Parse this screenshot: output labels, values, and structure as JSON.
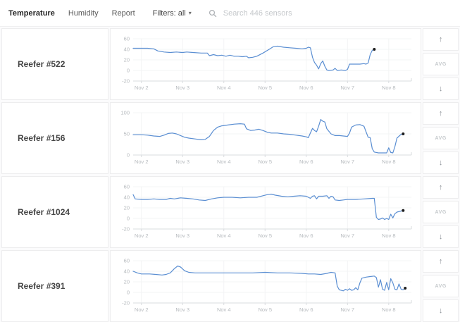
{
  "header": {
    "tabs": [
      {
        "label": "Temperature",
        "active": true
      },
      {
        "label": "Humidity",
        "active": false
      },
      {
        "label": "Report",
        "active": false
      }
    ],
    "filters_label": "Filters: all",
    "search_placeholder": "Search 446 sensors"
  },
  "icons": {
    "caret_down": "▾",
    "arrow_up": "↑",
    "arrow_down": "↓"
  },
  "controls": {
    "avg_label": "AVG"
  },
  "colors": {
    "line": "#5a8ed2",
    "dot": "#1d1d1d",
    "axis_text": "#b6babe",
    "grid": "#f3f4f5",
    "baseline": "#d9dcdf"
  },
  "chart_data": [
    {
      "type": "line",
      "title": "Reefer #522",
      "x_ticks": [
        "Nov 2",
        "Nov 3",
        "Nov 4",
        "Nov 5",
        "Nov 6",
        "Nov 7",
        "Nov 8"
      ],
      "x_min": -0.2,
      "x_max": 6.55,
      "ylim": [
        -20,
        60
      ],
      "yticks": [
        60,
        40,
        20,
        0,
        -20
      ],
      "end_dot": true,
      "series": [
        {
          "name": "temperature",
          "points": [
            [
              -0.2,
              42
            ],
            [
              0,
              42
            ],
            [
              0.15,
              42
            ],
            [
              0.3,
              41
            ],
            [
              0.4,
              37
            ],
            [
              0.55,
              35
            ],
            [
              0.7,
              34
            ],
            [
              0.85,
              35
            ],
            [
              1.0,
              34
            ],
            [
              1.1,
              35
            ],
            [
              1.25,
              34
            ],
            [
              1.45,
              33
            ],
            [
              1.6,
              33
            ],
            [
              1.65,
              28
            ],
            [
              1.75,
              30
            ],
            [
              1.85,
              28
            ],
            [
              1.95,
              29
            ],
            [
              2.05,
              27
            ],
            [
              2.15,
              29
            ],
            [
              2.25,
              27
            ],
            [
              2.35,
              27
            ],
            [
              2.45,
              26
            ],
            [
              2.55,
              27
            ],
            [
              2.6,
              24
            ],
            [
              2.7,
              25
            ],
            [
              2.8,
              27
            ],
            [
              2.95,
              33
            ],
            [
              3.1,
              40
            ],
            [
              3.2,
              45
            ],
            [
              3.3,
              46
            ],
            [
              3.45,
              44
            ],
            [
              3.6,
              43
            ],
            [
              3.75,
              42
            ],
            [
              3.9,
              41
            ],
            [
              4.0,
              42
            ],
            [
              4.05,
              44
            ],
            [
              4.1,
              43
            ],
            [
              4.15,
              25
            ],
            [
              4.2,
              15
            ],
            [
              4.25,
              10
            ],
            [
              4.3,
              3
            ],
            [
              4.35,
              13
            ],
            [
              4.4,
              18
            ],
            [
              4.45,
              8
            ],
            [
              4.5,
              1
            ],
            [
              4.55,
              0
            ],
            [
              4.65,
              1
            ],
            [
              4.7,
              4
            ],
            [
              4.75,
              0
            ],
            [
              4.85,
              1
            ],
            [
              4.95,
              0
            ],
            [
              5.0,
              2
            ],
            [
              5.05,
              12
            ],
            [
              5.15,
              12
            ],
            [
              5.3,
              12
            ],
            [
              5.4,
              13
            ],
            [
              5.45,
              12
            ],
            [
              5.5,
              14
            ],
            [
              5.55,
              30
            ],
            [
              5.6,
              38
            ],
            [
              5.65,
              40
            ]
          ]
        }
      ]
    },
    {
      "type": "line",
      "title": "Reefer #156",
      "x_ticks": [
        "Nov 2",
        "Nov 3",
        "Nov 4",
        "Nov 5",
        "Nov 6",
        "Nov 7",
        "Nov 8"
      ],
      "x_min": -0.2,
      "x_max": 6.55,
      "ylim": [
        0,
        100
      ],
      "yticks": [
        100,
        50,
        0
      ],
      "end_dot": true,
      "series": [
        {
          "name": "temperature",
          "points": [
            [
              -0.2,
              48
            ],
            [
              0,
              48
            ],
            [
              0.15,
              47
            ],
            [
              0.3,
              45
            ],
            [
              0.45,
              44
            ],
            [
              0.55,
              47
            ],
            [
              0.65,
              51
            ],
            [
              0.75,
              52
            ],
            [
              0.85,
              50
            ],
            [
              0.95,
              46
            ],
            [
              1.05,
              42
            ],
            [
              1.15,
              40
            ],
            [
              1.3,
              38
            ],
            [
              1.45,
              36
            ],
            [
              1.55,
              37
            ],
            [
              1.65,
              44
            ],
            [
              1.75,
              58
            ],
            [
              1.85,
              66
            ],
            [
              1.95,
              69
            ],
            [
              2.1,
              71
            ],
            [
              2.25,
              73
            ],
            [
              2.4,
              74
            ],
            [
              2.5,
              73
            ],
            [
              2.55,
              62
            ],
            [
              2.65,
              58
            ],
            [
              2.75,
              59
            ],
            [
              2.85,
              61
            ],
            [
              2.95,
              58
            ],
            [
              3.05,
              54
            ],
            [
              3.15,
              52
            ],
            [
              3.3,
              52
            ],
            [
              3.45,
              50
            ],
            [
              3.6,
              49
            ],
            [
              3.75,
              47
            ],
            [
              3.9,
              45
            ],
            [
              4.0,
              43
            ],
            [
              4.05,
              41
            ],
            [
              4.1,
              52
            ],
            [
              4.15,
              63
            ],
            [
              4.2,
              58
            ],
            [
              4.25,
              55
            ],
            [
              4.3,
              68
            ],
            [
              4.35,
              84
            ],
            [
              4.4,
              80
            ],
            [
              4.45,
              78
            ],
            [
              4.5,
              62
            ],
            [
              4.6,
              50
            ],
            [
              4.7,
              46
            ],
            [
              4.8,
              46
            ],
            [
              4.9,
              45
            ],
            [
              5.0,
              44
            ],
            [
              5.05,
              52
            ],
            [
              5.1,
              66
            ],
            [
              5.2,
              71
            ],
            [
              5.3,
              72
            ],
            [
              5.4,
              68
            ],
            [
              5.45,
              55
            ],
            [
              5.5,
              42
            ],
            [
              5.55,
              41
            ],
            [
              5.6,
              15
            ],
            [
              5.65,
              7
            ],
            [
              5.75,
              5
            ],
            [
              5.85,
              5
            ],
            [
              5.95,
              5
            ],
            [
              6.0,
              17
            ],
            [
              6.05,
              6
            ],
            [
              6.1,
              5
            ],
            [
              6.15,
              20
            ],
            [
              6.2,
              40
            ],
            [
              6.3,
              49
            ],
            [
              6.35,
              50
            ]
          ]
        }
      ]
    },
    {
      "type": "line",
      "title": "Reefer #1024",
      "x_ticks": [
        "Nov 2",
        "Nov 3",
        "Nov 4",
        "Nov 5",
        "Nov 6",
        "Nov 7",
        "Nov 8"
      ],
      "x_min": -0.2,
      "x_max": 6.55,
      "ylim": [
        -20,
        60
      ],
      "yticks": [
        60,
        40,
        20,
        0,
        -20
      ],
      "end_dot": true,
      "series": [
        {
          "name": "temperature",
          "points": [
            [
              -0.2,
              45
            ],
            [
              -0.15,
              37
            ],
            [
              0,
              36
            ],
            [
              0.15,
              36
            ],
            [
              0.3,
              37
            ],
            [
              0.45,
              36
            ],
            [
              0.6,
              36
            ],
            [
              0.7,
              38
            ],
            [
              0.8,
              37
            ],
            [
              0.95,
              39
            ],
            [
              1.1,
              38
            ],
            [
              1.25,
              37
            ],
            [
              1.4,
              35
            ],
            [
              1.55,
              34
            ],
            [
              1.7,
              37
            ],
            [
              1.85,
              39
            ],
            [
              2.0,
              40
            ],
            [
              2.2,
              40
            ],
            [
              2.4,
              39
            ],
            [
              2.6,
              40
            ],
            [
              2.8,
              40
            ],
            [
              2.95,
              43
            ],
            [
              3.05,
              45
            ],
            [
              3.15,
              46
            ],
            [
              3.25,
              44
            ],
            [
              3.4,
              42
            ],
            [
              3.55,
              41
            ],
            [
              3.7,
              42
            ],
            [
              3.85,
              43
            ],
            [
              4.0,
              42
            ],
            [
              4.1,
              38
            ],
            [
              4.15,
              42
            ],
            [
              4.2,
              43
            ],
            [
              4.25,
              37
            ],
            [
              4.3,
              42
            ],
            [
              4.4,
              42
            ],
            [
              4.5,
              43
            ],
            [
              4.55,
              38
            ],
            [
              4.6,
              42
            ],
            [
              4.65,
              41
            ],
            [
              4.7,
              35
            ],
            [
              4.8,
              34
            ],
            [
              4.9,
              35
            ],
            [
              5.0,
              36
            ],
            [
              5.2,
              36
            ],
            [
              5.4,
              37
            ],
            [
              5.6,
              38
            ],
            [
              5.65,
              38
            ],
            [
              5.7,
              2
            ],
            [
              5.75,
              -2
            ],
            [
              5.8,
              -1
            ],
            [
              5.85,
              1
            ],
            [
              5.9,
              -2
            ],
            [
              5.95,
              0
            ],
            [
              6.0,
              -2
            ],
            [
              6.05,
              8
            ],
            [
              6.1,
              1
            ],
            [
              6.15,
              9
            ],
            [
              6.2,
              12
            ],
            [
              6.3,
              14
            ],
            [
              6.35,
              15
            ]
          ]
        }
      ]
    },
    {
      "type": "line",
      "title": "Reefer #391",
      "x_ticks": [
        "Nov 2",
        "Nov 3",
        "Nov 4",
        "Nov 5",
        "Nov 6",
        "Nov 7",
        "Nov 8"
      ],
      "x_min": -0.2,
      "x_max": 6.55,
      "ylim": [
        -20,
        60
      ],
      "yticks": [
        60,
        40,
        20,
        0,
        -20
      ],
      "end_dot": true,
      "series": [
        {
          "name": "temperature",
          "points": [
            [
              -0.2,
              40
            ],
            [
              -0.1,
              37
            ],
            [
              0,
              35
            ],
            [
              0.2,
              35
            ],
            [
              0.35,
              34
            ],
            [
              0.5,
              33
            ],
            [
              0.6,
              34
            ],
            [
              0.7,
              37
            ],
            [
              0.8,
              45
            ],
            [
              0.88,
              50
            ],
            [
              0.95,
              48
            ],
            [
              1.05,
              41
            ],
            [
              1.15,
              38
            ],
            [
              1.3,
              37
            ],
            [
              1.5,
              37
            ],
            [
              1.8,
              37
            ],
            [
              2.1,
              37
            ],
            [
              2.4,
              37
            ],
            [
              2.7,
              37
            ],
            [
              3.0,
              38
            ],
            [
              3.3,
              37
            ],
            [
              3.6,
              37
            ],
            [
              3.9,
              36
            ],
            [
              4.05,
              35
            ],
            [
              4.2,
              35
            ],
            [
              4.35,
              34
            ],
            [
              4.5,
              36
            ],
            [
              4.6,
              38
            ],
            [
              4.7,
              37
            ],
            [
              4.75,
              12
            ],
            [
              4.8,
              5
            ],
            [
              4.9,
              3
            ],
            [
              4.95,
              6
            ],
            [
              5.0,
              4
            ],
            [
              5.05,
              7
            ],
            [
              5.1,
              4
            ],
            [
              5.15,
              5
            ],
            [
              5.2,
              9
            ],
            [
              5.25,
              5
            ],
            [
              5.3,
              18
            ],
            [
              5.35,
              27
            ],
            [
              5.45,
              29
            ],
            [
              5.55,
              30
            ],
            [
              5.65,
              31
            ],
            [
              5.7,
              28
            ],
            [
              5.75,
              10
            ],
            [
              5.8,
              24
            ],
            [
              5.85,
              6
            ],
            [
              5.9,
              4
            ],
            [
              5.95,
              19
            ],
            [
              6.0,
              5
            ],
            [
              6.05,
              26
            ],
            [
              6.1,
              18
            ],
            [
              6.15,
              6
            ],
            [
              6.2,
              5
            ],
            [
              6.25,
              16
            ],
            [
              6.3,
              6
            ],
            [
              6.35,
              5
            ],
            [
              6.4,
              8
            ]
          ]
        }
      ]
    }
  ]
}
